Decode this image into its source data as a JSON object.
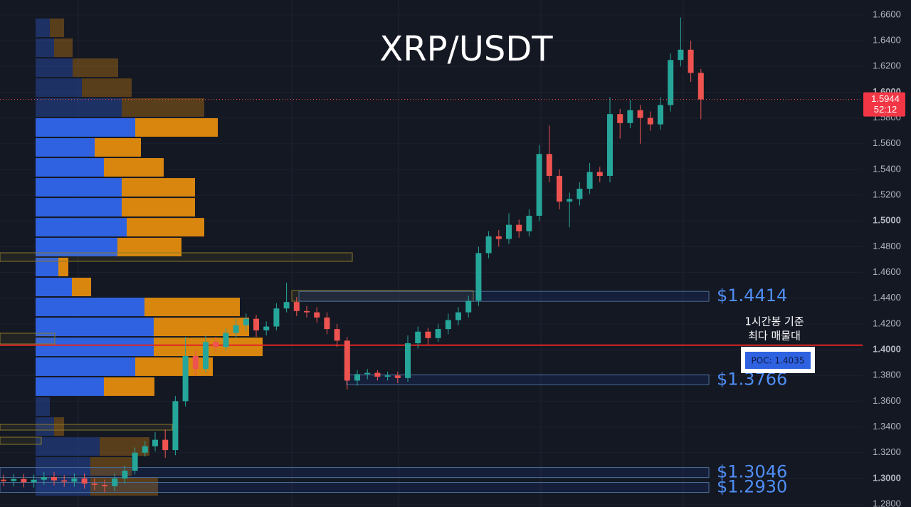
{
  "chart_data": {
    "type": "candlestick",
    "title": "XRP/USDT",
    "ylim": [
      1.2778,
      1.6716
    ],
    "yticks": [
      {
        "value": 1.66,
        "label": "1.6600"
      },
      {
        "value": 1.64,
        "label": "1.6400"
      },
      {
        "value": 1.62,
        "label": "1.6200"
      },
      {
        "value": 1.6,
        "label": "1.6000"
      },
      {
        "value": 1.58,
        "label": "1.5800"
      },
      {
        "value": 1.56,
        "label": "1.5600"
      },
      {
        "value": 1.54,
        "label": "1.5400"
      },
      {
        "value": 1.52,
        "label": "1.5200"
      },
      {
        "value": 1.5,
        "label": "1.5000"
      },
      {
        "value": 1.48,
        "label": "1.4800"
      },
      {
        "value": 1.46,
        "label": "1.4600"
      },
      {
        "value": 1.44,
        "label": "1.4400"
      },
      {
        "value": 1.42,
        "label": "1.4200"
      },
      {
        "value": 1.4,
        "label": "1.4000"
      },
      {
        "value": 1.38,
        "label": "1.3800"
      },
      {
        "value": 1.36,
        "label": "1.3600"
      },
      {
        "value": 1.34,
        "label": "1.3400"
      },
      {
        "value": 1.32,
        "label": "1.3200"
      },
      {
        "value": 1.3,
        "label": "1.3000"
      },
      {
        "value": 1.28,
        "label": "1.2800"
      }
    ],
    "up_color": "#26a69a",
    "down_color": "#ef5350",
    "open": [
      1.299,
      1.298,
      1.2995,
      1.297,
      1.299,
      1.301,
      1.2985,
      1.2975,
      1.3,
      1.296,
      1.295,
      1.294,
      1.3,
      1.306,
      1.32,
      1.325,
      1.33,
      1.322,
      1.36,
      1.395,
      1.385,
      1.406,
      1.402,
      1.413,
      1.419,
      1.424,
      1.415,
      1.418,
      1.432,
      1.437,
      1.43,
      1.429,
      1.425,
      1.416,
      1.407,
      1.376,
      1.381,
      1.382,
      1.379,
      1.38,
      1.378,
      1.405,
      1.414,
      1.409,
      1.416,
      1.423,
      1.429,
      1.438,
      1.475,
      1.488,
      1.486,
      1.497,
      1.492,
      1.504,
      1.552,
      1.535,
      1.515,
      1.517,
      1.525,
      1.538,
      1.535,
      1.583,
      1.576,
      1.586,
      1.58,
      1.575,
      1.59,
      1.625,
      1.633,
      1.615
    ],
    "high": [
      1.303,
      1.3035,
      1.3035,
      1.303,
      1.305,
      1.305,
      1.3025,
      1.304,
      1.304,
      1.3,
      1.299,
      1.304,
      1.31,
      1.324,
      1.329,
      1.336,
      1.338,
      1.364,
      1.41,
      1.4,
      1.411,
      1.41,
      1.417,
      1.424,
      1.428,
      1.427,
      1.422,
      1.436,
      1.452,
      1.441,
      1.434,
      1.433,
      1.429,
      1.42,
      1.41,
      1.384,
      1.385,
      1.384,
      1.383,
      1.383,
      1.411,
      1.418,
      1.417,
      1.42,
      1.428,
      1.433,
      1.442,
      1.48,
      1.492,
      1.493,
      1.506,
      1.501,
      1.509,
      1.559,
      1.574,
      1.54,
      1.522,
      1.53,
      1.545,
      1.542,
      1.596,
      1.587,
      1.594,
      1.59,
      1.585,
      1.596,
      1.63,
      1.658,
      1.64,
      1.618
    ],
    "low": [
      1.294,
      1.294,
      1.293,
      1.293,
      1.295,
      1.2945,
      1.2935,
      1.2935,
      1.292,
      1.291,
      1.289,
      1.29,
      1.296,
      1.303,
      1.317,
      1.321,
      1.316,
      1.318,
      1.356,
      1.38,
      1.382,
      1.398,
      1.399,
      1.409,
      1.415,
      1.41,
      1.411,
      1.415,
      1.429,
      1.426,
      1.425,
      1.421,
      1.412,
      1.402,
      1.369,
      1.372,
      1.377,
      1.376,
      1.376,
      1.374,
      1.375,
      1.401,
      1.404,
      1.406,
      1.412,
      1.419,
      1.425,
      1.434,
      1.471,
      1.48,
      1.482,
      1.487,
      1.488,
      1.5,
      1.53,
      1.509,
      1.495,
      1.512,
      1.521,
      1.53,
      1.53,
      1.564,
      1.572,
      1.56,
      1.57,
      1.571,
      1.585,
      1.62,
      1.608,
      1.579
    ],
    "close": [
      1.298,
      1.2995,
      1.297,
      1.299,
      1.301,
      1.2985,
      1.2975,
      1.3,
      1.296,
      1.295,
      1.294,
      1.3,
      1.306,
      1.32,
      1.325,
      1.33,
      1.322,
      1.36,
      1.395,
      1.385,
      1.406,
      1.402,
      1.413,
      1.419,
      1.424,
      1.415,
      1.418,
      1.432,
      1.437,
      1.43,
      1.429,
      1.425,
      1.416,
      1.407,
      1.376,
      1.381,
      1.382,
      1.379,
      1.38,
      1.378,
      1.405,
      1.414,
      1.409,
      1.416,
      1.423,
      1.429,
      1.438,
      1.475,
      1.488,
      1.486,
      1.497,
      1.492,
      1.504,
      1.552,
      1.535,
      1.515,
      1.517,
      1.525,
      1.538,
      1.535,
      1.583,
      1.576,
      1.586,
      1.58,
      1.575,
      1.59,
      1.625,
      1.633,
      1.615,
      1.5944
    ],
    "last_price": 1.5944,
    "countdown": "52:12",
    "volume_profile": {
      "buy_color": "#2f62e0",
      "sell_color": "#d9860f",
      "rows": [
        {
          "price": 1.65,
          "buy": 20,
          "sell": 20,
          "dim": true
        },
        {
          "price": 1.6345,
          "buy": 26,
          "sell": 26,
          "dim": true
        },
        {
          "price": 1.619,
          "buy": 52,
          "sell": 64,
          "dim": true
        },
        {
          "price": 1.6035,
          "buy": 65,
          "sell": 70,
          "dim": true
        },
        {
          "price": 1.5881,
          "buy": 121,
          "sell": 116,
          "dim": true
        },
        {
          "price": 1.5726,
          "buy": 140,
          "sell": 116,
          "dim": false
        },
        {
          "price": 1.5571,
          "buy": 83,
          "sell": 65,
          "dim": false
        },
        {
          "price": 1.5416,
          "buy": 96,
          "sell": 84,
          "dim": false
        },
        {
          "price": 1.5261,
          "buy": 121,
          "sell": 103,
          "dim": false
        },
        {
          "price": 1.5106,
          "buy": 121,
          "sell": 103,
          "dim": false
        },
        {
          "price": 1.4951,
          "buy": 128,
          "sell": 109,
          "dim": false
        },
        {
          "price": 1.4797,
          "buy": 115,
          "sell": 90,
          "dim": false
        },
        {
          "price": 1.4642,
          "buy": 32,
          "sell": 14,
          "dim": false
        },
        {
          "price": 1.4487,
          "buy": 51,
          "sell": 27,
          "dim": false
        },
        {
          "price": 1.4332,
          "buy": 153,
          "sell": 134,
          "dim": false
        },
        {
          "price": 1.4177,
          "buy": 166,
          "sell": 134,
          "dim": false
        },
        {
          "price": 1.4022,
          "buy": 166,
          "sell": 153,
          "dim": false
        },
        {
          "price": 1.3868,
          "buy": 140,
          "sell": 109,
          "dim": false
        },
        {
          "price": 1.3713,
          "buy": 96,
          "sell": 71,
          "dim": false
        },
        {
          "price": 1.3558,
          "buy": 20,
          "sell": 0,
          "dim": true
        },
        {
          "price": 1.3403,
          "buy": 26,
          "sell": 14,
          "dim": true
        },
        {
          "price": 1.3248,
          "buy": 90,
          "sell": 70,
          "dim": true
        },
        {
          "price": 1.3093,
          "buy": 77,
          "sell": 58,
          "dim": true
        },
        {
          "price": 1.2938,
          "buy": 77,
          "sell": 95,
          "dim": true
        }
      ]
    },
    "levels": [
      {
        "price": 1.4414,
        "label": "$1.4414"
      },
      {
        "price": 1.3766,
        "label": "$1.3766"
      },
      {
        "price": 1.3046,
        "label": "$1.3046"
      },
      {
        "price": 1.293,
        "label": "$1.2930"
      }
    ],
    "poc": {
      "price": 1.4035,
      "label": "POC: 1.4035",
      "note": [
        "1시간봉 기준",
        "최다 매물대"
      ]
    }
  }
}
